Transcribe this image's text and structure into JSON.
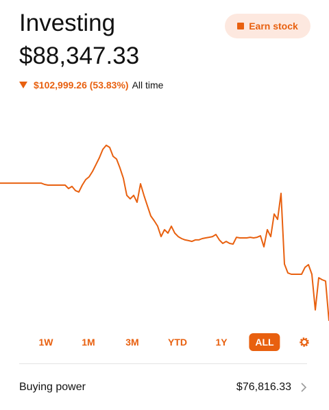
{
  "header": {
    "title": "Investing",
    "value": "$88,347.33",
    "change": "$102,999.26 (53.83%)",
    "change_period": "All time"
  },
  "earn_button": "Earn stock",
  "chart_data": {
    "type": "line",
    "color": "#e8600f",
    "ylim": [
      80000,
      250000
    ],
    "values": [
      189700,
      189700,
      189700,
      189700,
      189700,
      189700,
      189700,
      189700,
      189700,
      189700,
      189700,
      189700,
      189700,
      188700,
      188200,
      188200,
      188200,
      188200,
      188200,
      188200,
      185600,
      187200,
      184100,
      183000,
      188200,
      192300,
      194400,
      198500,
      203600,
      208800,
      215000,
      218100,
      216500,
      209800,
      207800,
      201100,
      193300,
      180500,
      177900,
      180500,
      175300,
      189200,
      180500,
      172700,
      165000,
      161400,
      157300,
      149500,
      154700,
      152100,
      157300,
      152100,
      149500,
      148000,
      147000,
      146500,
      145900,
      147000,
      147000,
      148000,
      148500,
      149000,
      149500,
      151100,
      147000,
      144400,
      145900,
      144400,
      143900,
      149000,
      148500,
      148500,
      148500,
      149000,
      148500,
      149000,
      150100,
      141800,
      154700,
      149500,
      166500,
      162400,
      182000,
      128900,
      122200,
      121200,
      121200,
      121200,
      121200,
      126400,
      128400,
      121200,
      94400,
      118600,
      117100,
      116100,
      86200
    ]
  },
  "ranges": [
    "1W",
    "1M",
    "3M",
    "YTD",
    "1Y",
    "ALL"
  ],
  "selected_range": "ALL",
  "buying_power": {
    "label": "Buying power",
    "value": "$76,816.33"
  }
}
